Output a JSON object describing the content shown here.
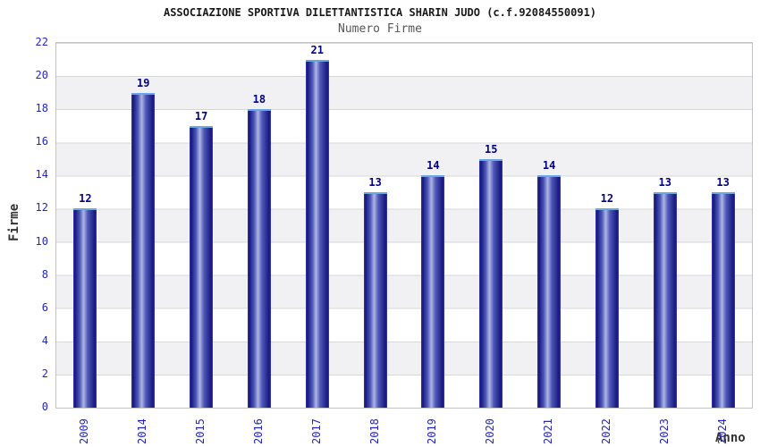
{
  "chart_data": {
    "type": "bar",
    "title": "ASSOCIAZIONE SPORTIVA DILETTANTISTICA SHARIN JUDO (c.f.92084550091)",
    "subtitle": "Numero Firme",
    "xlabel": "Anno",
    "ylabel": "Firme",
    "categories": [
      "2009",
      "2014",
      "2015",
      "2016",
      "2017",
      "2018",
      "2019",
      "2020",
      "2021",
      "2022",
      "2023",
      "2024"
    ],
    "values": [
      12,
      19,
      17,
      18,
      21,
      13,
      14,
      15,
      14,
      12,
      13,
      13
    ],
    "ylim": [
      0,
      22
    ],
    "ytick_step": 2,
    "grid": true,
    "legend": false,
    "background_bands": "alternating white and light-gray horizontal bands every 2 units",
    "bar_value_labels_shown": true,
    "x_tick_rotation_degrees": -90
  },
  "colors": {
    "title_text": "#1a1a1a",
    "subtitle_text": "#55565a",
    "tick_label_blue": "#2424cc",
    "bar_value_navy": "#00008b",
    "axis_title_gray": "#333333",
    "bar_dark": "#17177e",
    "bar_highlight": "#aeb6e4",
    "bar_top_edge": "#6ca6e4",
    "band_gray": "#f1f1f3",
    "gridline": "#d8d8d8",
    "plot_border": "#c4c4c4"
  }
}
